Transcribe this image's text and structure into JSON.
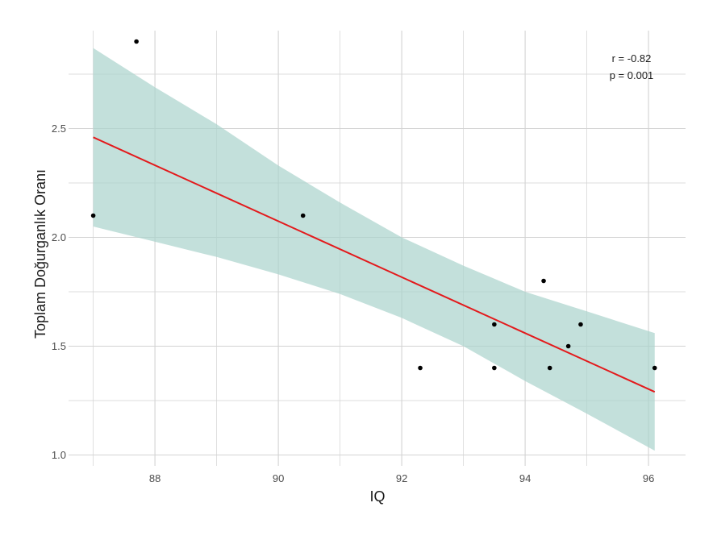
{
  "chart_data": {
    "type": "scatter",
    "xlabel": "IQ",
    "ylabel": "Toplam Doğurganlık Oranı",
    "xlim": [
      86.6,
      96.6
    ],
    "ylim": [
      0.95,
      2.95
    ],
    "xticks": [
      88,
      90,
      92,
      94,
      96
    ],
    "yticks": [
      1.0,
      1.5,
      2.0,
      2.5
    ],
    "xtick_labels": [
      "88",
      "90",
      "92",
      "94",
      "96"
    ],
    "ytick_labels": [
      "1.0",
      "1.5",
      "2.0",
      "2.5"
    ],
    "grid": true,
    "points": [
      {
        "x": 87.0,
        "y": 2.1
      },
      {
        "x": 87.7,
        "y": 2.9
      },
      {
        "x": 90.4,
        "y": 2.1
      },
      {
        "x": 92.3,
        "y": 1.4
      },
      {
        "x": 93.5,
        "y": 1.6
      },
      {
        "x": 93.5,
        "y": 1.4
      },
      {
        "x": 94.3,
        "y": 1.8
      },
      {
        "x": 94.4,
        "y": 1.4
      },
      {
        "x": 94.7,
        "y": 1.5
      },
      {
        "x": 94.9,
        "y": 1.6
      },
      {
        "x": 96.1,
        "y": 1.4
      }
    ],
    "fit_line": {
      "x": [
        87.0,
        96.1
      ],
      "y": [
        2.46,
        1.29
      ]
    },
    "confidence_band": {
      "x": [
        87.0,
        88.0,
        89.0,
        90.0,
        91.0,
        92.0,
        93.0,
        93.5,
        94.0,
        95.0,
        96.1
      ],
      "upper": [
        2.87,
        2.69,
        2.52,
        2.33,
        2.16,
        2.0,
        1.87,
        1.81,
        1.75,
        1.66,
        1.56
      ],
      "lower": [
        2.05,
        1.98,
        1.91,
        1.83,
        1.74,
        1.63,
        1.5,
        1.42,
        1.34,
        1.19,
        1.02
      ]
    },
    "colors": {
      "points": "#000000",
      "fit_line": "#e31a1c",
      "band": "#a9d3cc",
      "grid": "#d3d3d3"
    },
    "annotations": {
      "r": "r = -0.82",
      "p": "p = 0.001"
    }
  }
}
